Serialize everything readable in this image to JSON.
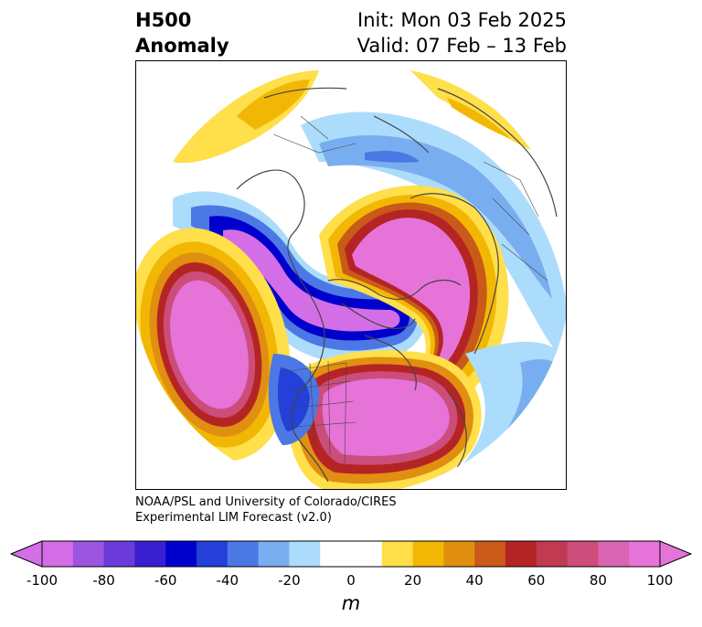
{
  "title": {
    "left_line1": "H500",
    "left_line2": "Anomaly",
    "right_line1": "Init: Mon 03 Feb 2025",
    "right_line2": "Valid: 07 Feb – 13 Feb"
  },
  "credit": {
    "line1": "NOAA/PSL and University of Colorado/CIRES",
    "line2": "Experimental LIM Forecast (v2.0)"
  },
  "colorbar": {
    "unit": "m",
    "min": -100,
    "max": 100,
    "step": 10,
    "tick_labels": [
      "-100",
      "-80",
      "-60",
      "-40",
      "-20",
      "0",
      "20",
      "40",
      "60",
      "80",
      "100"
    ],
    "colors": [
      "#d46ee6",
      "#9b55e0",
      "#6a3bd8",
      "#3a1fd0",
      "#0000cc",
      "#2440d8",
      "#4c78e6",
      "#78aef0",
      "#acdcfb",
      "#ffffff",
      "#ffffff",
      "#ffdf4a",
      "#f2b705",
      "#e08f10",
      "#c95a17",
      "#b52424",
      "#c03a52",
      "#cc4d79",
      "#d965b4",
      "#e673d8"
    ]
  },
  "map": {
    "projection": "north polar stereographic",
    "anomalies_m": [
      {
        "name": "north-pacific-trough",
        "value": -100
      },
      {
        "name": "northeast-pacific-ridge",
        "value": 100
      },
      {
        "name": "eastern-north-america-ridge",
        "value": 100
      },
      {
        "name": "greenland-atlantic-ridge",
        "value": 100
      },
      {
        "name": "eurasia-trough",
        "value": -40
      },
      {
        "name": "western-us-trough",
        "value": -40
      }
    ]
  }
}
